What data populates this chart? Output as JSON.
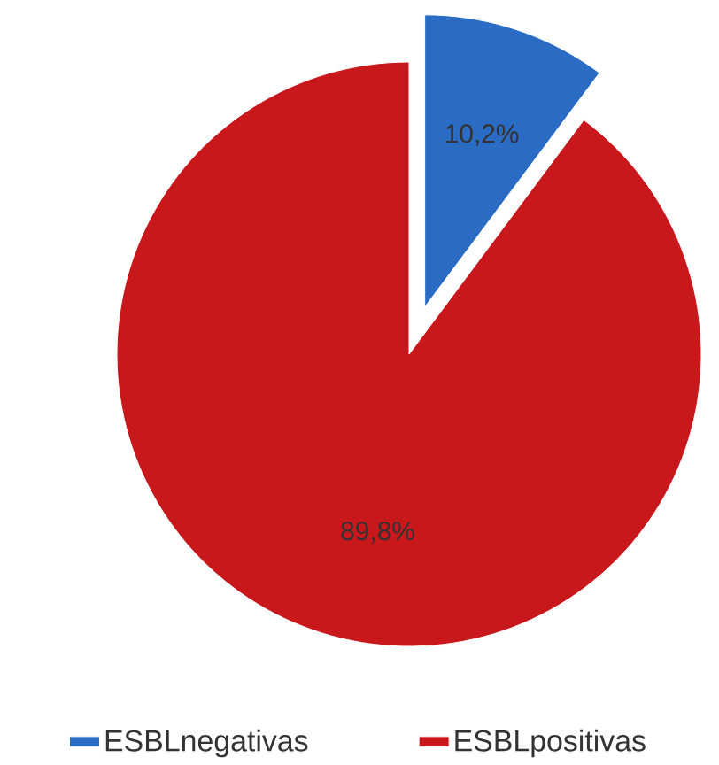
{
  "chart_data": {
    "type": "pie",
    "categories": [
      "ESBLnegativas",
      "ESBLpositivas"
    ],
    "values": [
      10.2,
      89.8
    ],
    "colors": [
      "#2a6cc4",
      "#c8181c"
    ],
    "value_labels": [
      "10,2%",
      "89,8%"
    ],
    "legend": "bottom"
  }
}
